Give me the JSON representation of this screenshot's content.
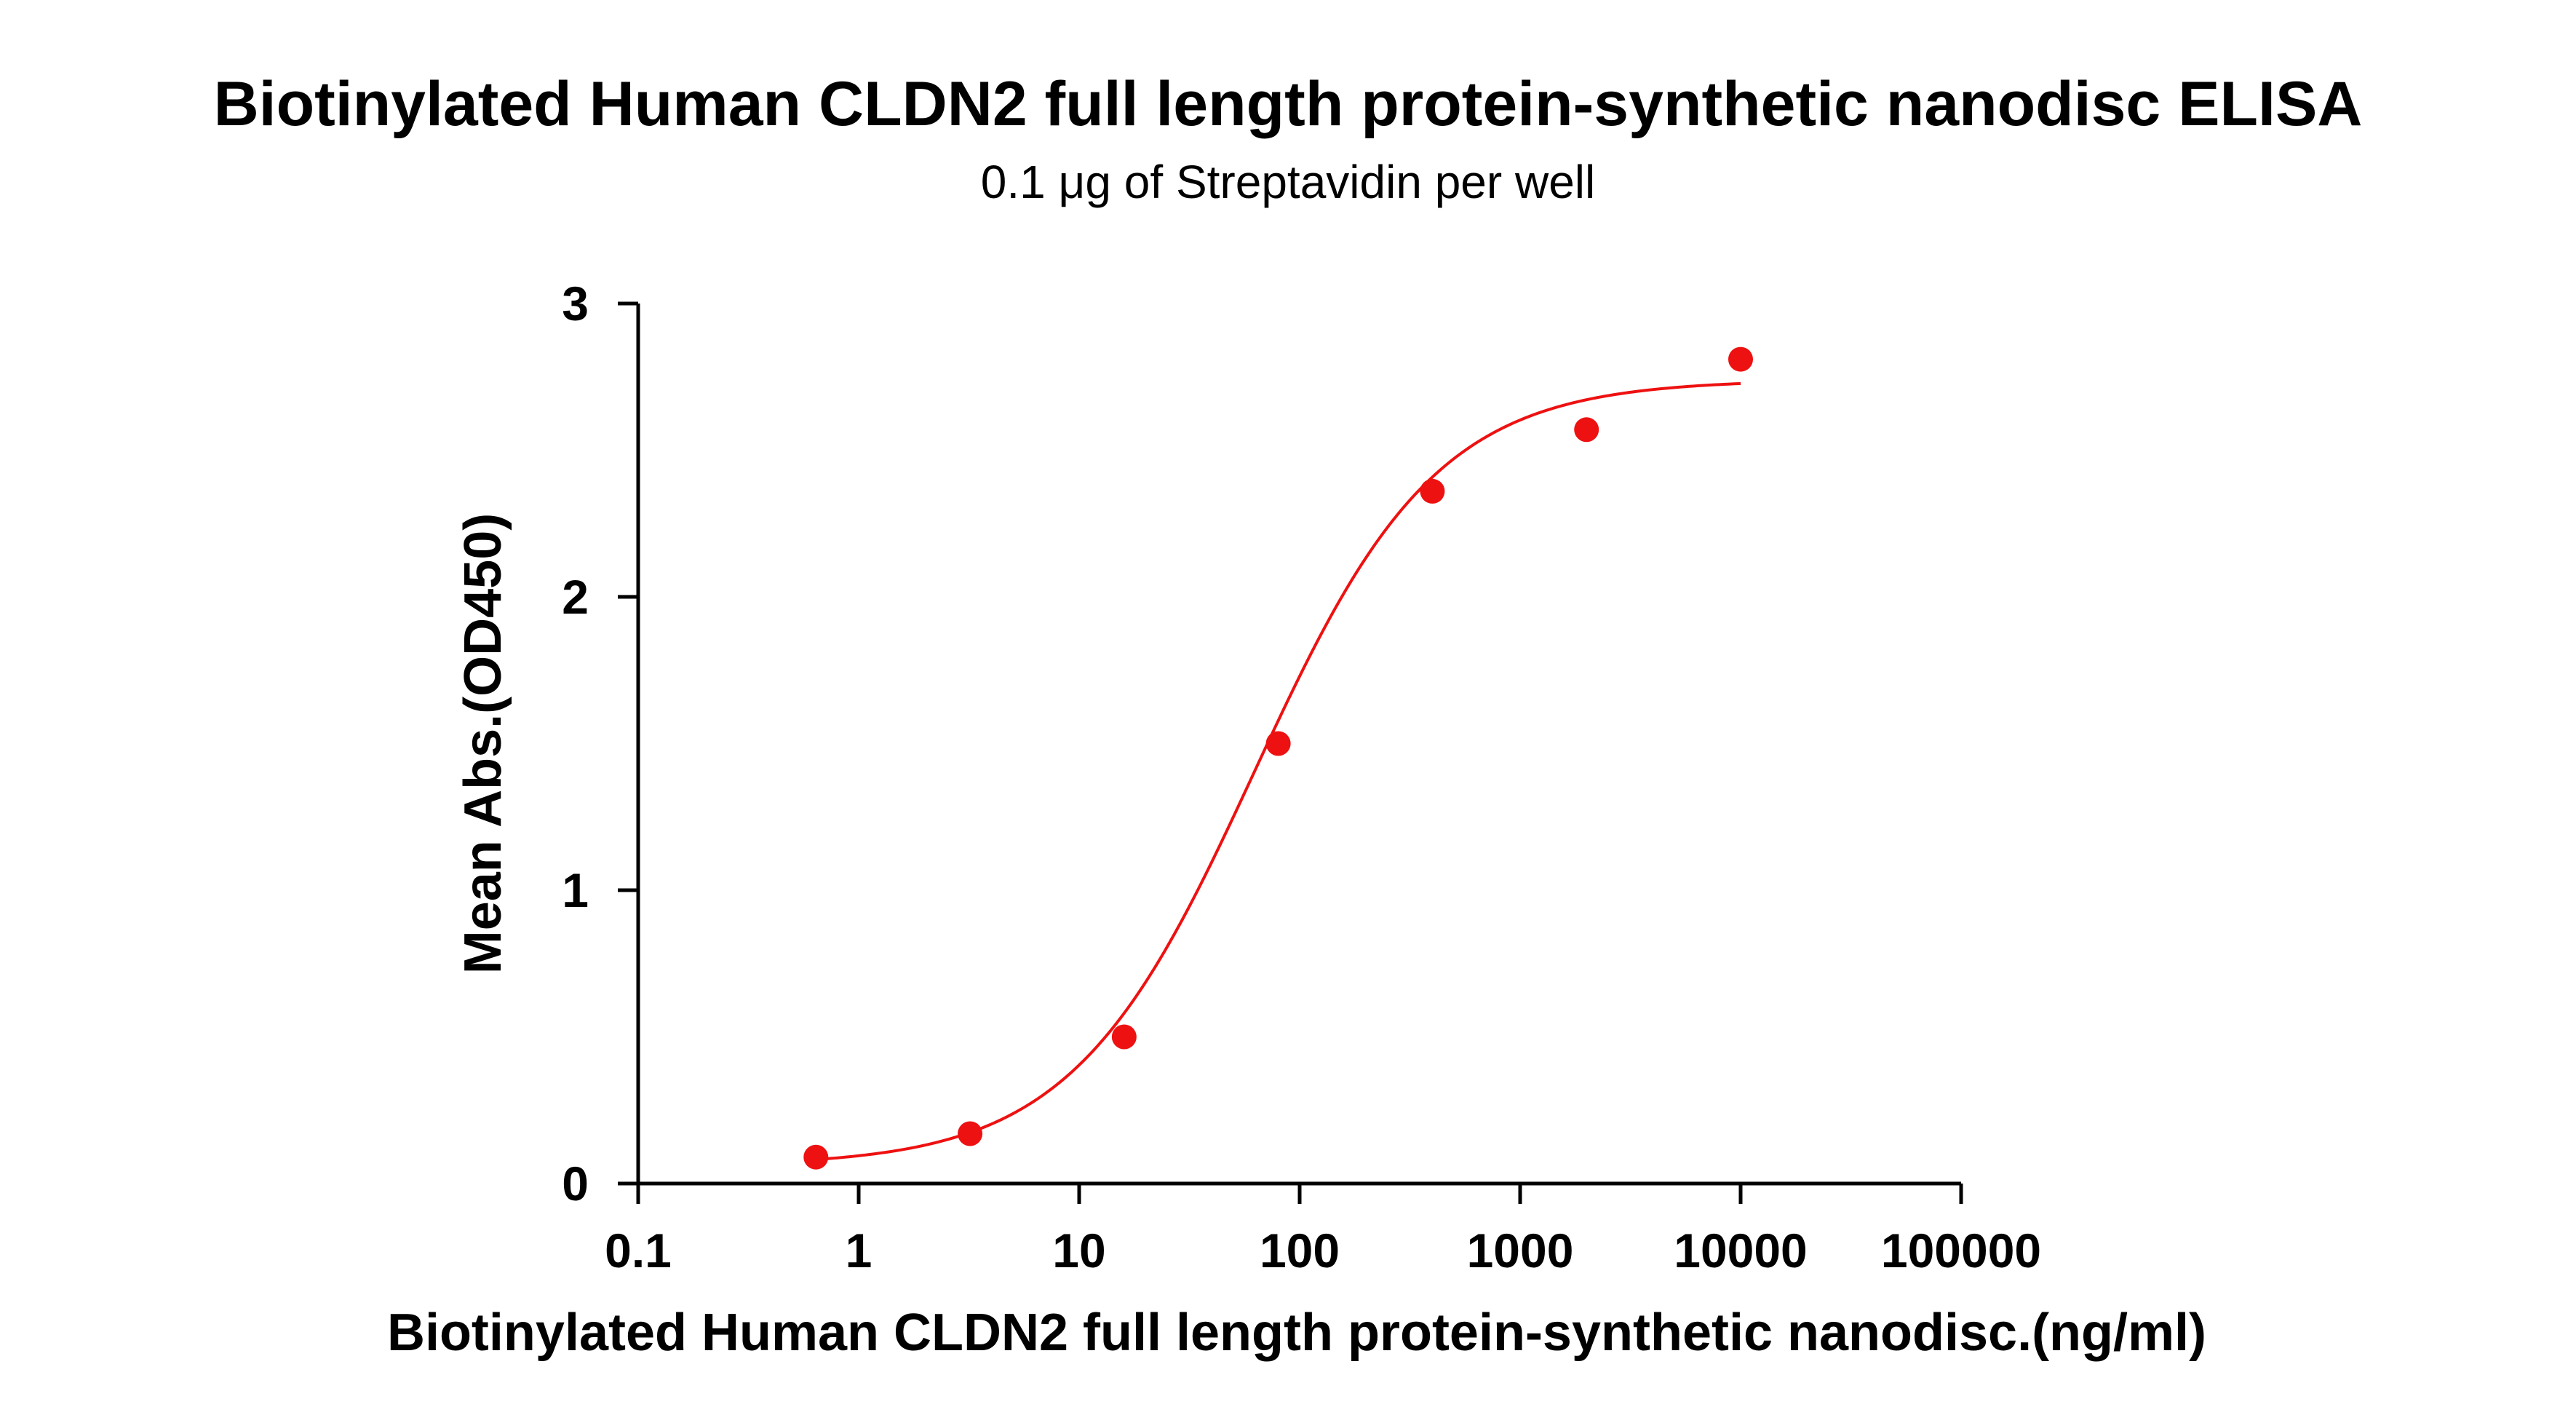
{
  "chart_data": {
    "type": "scatter",
    "title": "Biotinylated Human CLDN2 full length protein-synthetic nanodisc ELISA",
    "subtitle": "0.1 μg of Streptavidin per well",
    "xlabel": "Biotinylated Human CLDN2 full length protein-synthetic nanodisc.(ng/ml)",
    "ylabel": "Mean Abs.(OD450)",
    "x_scale": "log",
    "xlim": [
      0.1,
      100000
    ],
    "ylim": [
      0,
      3
    ],
    "x_ticks": [
      0.1,
      1,
      10,
      100,
      1000,
      10000,
      100000
    ],
    "x_tick_labels": [
      "0.1",
      "1",
      "10",
      "100",
      "1000",
      "10000",
      "100000"
    ],
    "y_ticks": [
      0,
      1,
      2,
      3
    ],
    "y_tick_labels": [
      "0",
      "1",
      "2",
      "3"
    ],
    "grid": false,
    "color": "#ee1111",
    "series": [
      {
        "x": [
          0.64,
          3.2,
          16,
          80,
          400,
          2000,
          10000
        ],
        "y": [
          0.09,
          0.17,
          0.5,
          1.5,
          2.36,
          2.57,
          2.81
        ]
      }
    ],
    "fit_curve": {
      "type": "4PL",
      "bottom": 0.06,
      "top": 2.74,
      "ec50": 62,
      "hill": 1.05,
      "x_range": [
        0.64,
        10000
      ]
    }
  }
}
